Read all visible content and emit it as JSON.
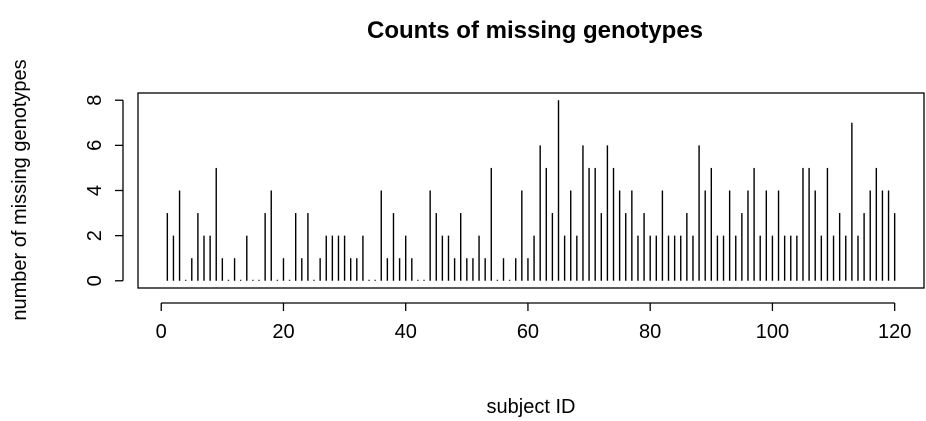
{
  "chart_data": {
    "type": "bar",
    "title": "Counts of missing genotypes",
    "xlabel": "subject ID",
    "ylabel": "number of missing genotypes",
    "xlim": [
      -3.8,
      124.8
    ],
    "ylim": [
      -0.32,
      8.32
    ],
    "xticks": [
      0,
      20,
      40,
      60,
      80,
      100,
      120
    ],
    "yticks": [
      0,
      2,
      4,
      6,
      8
    ],
    "grid": false,
    "legend": "none",
    "x": [
      1,
      2,
      3,
      4,
      5,
      6,
      7,
      8,
      9,
      10,
      11,
      12,
      13,
      14,
      15,
      16,
      17,
      18,
      19,
      20,
      21,
      22,
      23,
      24,
      25,
      26,
      27,
      28,
      29,
      30,
      31,
      32,
      33,
      34,
      35,
      36,
      37,
      38,
      39,
      40,
      41,
      42,
      43,
      44,
      45,
      46,
      47,
      48,
      49,
      50,
      51,
      52,
      53,
      54,
      55,
      56,
      57,
      58,
      59,
      60,
      61,
      62,
      63,
      64,
      65,
      66,
      67,
      68,
      69,
      70,
      71,
      72,
      73,
      74,
      75,
      76,
      77,
      78,
      79,
      80,
      81,
      82,
      83,
      84,
      85,
      86,
      87,
      88,
      89,
      90,
      91,
      92,
      93,
      94,
      95,
      96,
      97,
      98,
      99,
      100,
      101,
      102,
      103,
      104,
      105,
      106,
      107,
      108,
      109,
      110,
      111,
      112,
      113,
      114,
      115,
      116,
      117,
      118,
      119,
      120
    ],
    "values": [
      3,
      2,
      4,
      0,
      1,
      3,
      2,
      2,
      5,
      1,
      0,
      1,
      0,
      2,
      0,
      0,
      3,
      4,
      0,
      1,
      0,
      3,
      1,
      3,
      0,
      1,
      2,
      2,
      2,
      2,
      1,
      1,
      2,
      0,
      0,
      4,
      1,
      3,
      1,
      2,
      1,
      0,
      0,
      4,
      3,
      2,
      2,
      1,
      3,
      1,
      1,
      2,
      1,
      5,
      0,
      1,
      0,
      1,
      4,
      1,
      2,
      6,
      5,
      3,
      8,
      2,
      4,
      2,
      6,
      5,
      5,
      3,
      6,
      5,
      4,
      3,
      4,
      2,
      3,
      2,
      2,
      4,
      2,
      2,
      2,
      3,
      2,
      6,
      4,
      5,
      2,
      2,
      4,
      2,
      3,
      4,
      5,
      2,
      4,
      2,
      4,
      2,
      2,
      2,
      5,
      5,
      4,
      2,
      5,
      2,
      3,
      2,
      7,
      2,
      3,
      4,
      5,
      4,
      4,
      3
    ],
    "color": "#000000"
  }
}
